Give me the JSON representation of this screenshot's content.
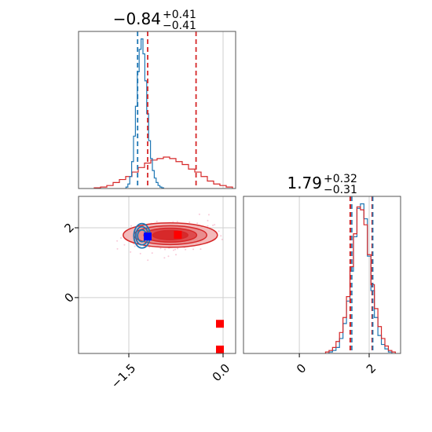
{
  "chart_data": {
    "type": "corner",
    "grid": true,
    "colors": {
      "blue": "#1f77b4",
      "red": "#d62728",
      "red_fill": "#e8888a",
      "pink_points": "#f4a6c0"
    },
    "parameters": [
      {
        "title_value": "−0.84",
        "title_upper": "+0.41",
        "title_lower": "−0.41",
        "range": [
          -2.3,
          0.2
        ]
      },
      {
        "title_value": "1.79",
        "title_upper": "+0.32",
        "title_lower": "−0.31",
        "range": [
          -1.6,
          2.9
        ]
      }
    ],
    "x_ticks": [
      {
        "value": -1.5,
        "label": "−1.5"
      },
      {
        "value": 0.0,
        "label": "0.0"
      }
    ],
    "y_ticks": [
      {
        "value": 0,
        "label": "0"
      },
      {
        "value": 2,
        "label": "2"
      }
    ],
    "diag_x_ticks": [
      {
        "value": 0,
        "label": "0"
      },
      {
        "value": 2,
        "label": "2"
      }
    ],
    "quantile_lines": {
      "param1_red": [
        -1.2,
        -0.43
      ],
      "param1_blue": [
        -1.36
      ],
      "param2_red": [
        1.46,
        2.09
      ],
      "param2_blue": [
        1.47,
        2.07
      ]
    },
    "markers": {
      "blue": [
        {
          "x": -1.2,
          "y": 1.75
        }
      ],
      "red": [
        {
          "x": -0.72,
          "y": 1.8
        },
        {
          "x": -0.05,
          "y": -0.75
        },
        {
          "x": -0.05,
          "y": -1.6
        }
      ]
    },
    "hist1_blue": {
      "x": [
        -1.53,
        -1.5,
        -1.47,
        -1.44,
        -1.41,
        -1.38,
        -1.35,
        -1.32,
        -1.29,
        -1.26,
        -1.23,
        -1.2,
        -1.17,
        -1.14,
        -1.11,
        -1.08,
        -1.05,
        -1.02,
        -0.99,
        -0.96
      ],
      "y": [
        0.01,
        0.03,
        0.08,
        0.18,
        0.35,
        0.55,
        0.78,
        0.93,
        1.0,
        0.9,
        0.72,
        0.5,
        0.32,
        0.2,
        0.12,
        0.07,
        0.04,
        0.02,
        0.01,
        0.005
      ]
    },
    "hist1_red": {
      "x": [
        -2.0,
        -1.9,
        -1.8,
        -1.7,
        -1.6,
        -1.5,
        -1.4,
        -1.3,
        -1.2,
        -1.1,
        -1.0,
        -0.9,
        -0.8,
        -0.7,
        -0.6,
        -0.5,
        -0.4,
        -0.3,
        -0.2,
        -0.1,
        0.0,
        0.1
      ],
      "y": [
        0.005,
        0.01,
        0.02,
        0.04,
        0.06,
        0.08,
        0.11,
        0.14,
        0.17,
        0.19,
        0.2,
        0.21,
        0.2,
        0.18,
        0.16,
        0.13,
        0.11,
        0.08,
        0.05,
        0.03,
        0.02,
        0.01
      ]
    },
    "hist2_blue": {
      "x": [
        0.9,
        1.0,
        1.1,
        1.2,
        1.3,
        1.4,
        1.5,
        1.6,
        1.7,
        1.8,
        1.9,
        2.0,
        2.1,
        2.2,
        2.3,
        2.4,
        2.5,
        2.6
      ],
      "y": [
        0.01,
        0.02,
        0.04,
        0.1,
        0.2,
        0.35,
        0.55,
        0.78,
        0.97,
        1.0,
        0.9,
        0.65,
        0.42,
        0.24,
        0.12,
        0.06,
        0.03,
        0.01
      ]
    },
    "hist2_red": {
      "x": [
        0.8,
        0.9,
        1.0,
        1.1,
        1.2,
        1.3,
        1.4,
        1.5,
        1.6,
        1.7,
        1.8,
        1.9,
        2.0,
        2.1,
        2.2,
        2.3,
        2.4,
        2.5,
        2.6,
        2.7
      ],
      "y": [
        0.01,
        0.02,
        0.04,
        0.08,
        0.14,
        0.24,
        0.38,
        0.58,
        0.8,
        0.98,
        0.96,
        0.86,
        0.66,
        0.46,
        0.3,
        0.18,
        0.1,
        0.05,
        0.02,
        0.01
      ]
    }
  }
}
